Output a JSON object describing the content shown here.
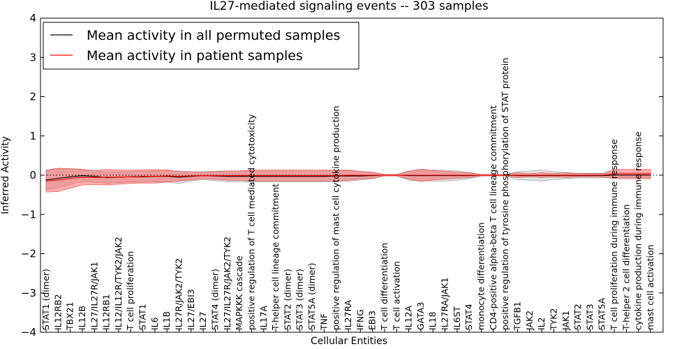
{
  "chart_data": {
    "type": "line",
    "title": "IL27-mediated signaling events -- 303 samples",
    "xlabel": "Cellular Entities",
    "ylabel": "Inferred Activity",
    "ylim": [
      -4,
      4
    ],
    "yticks": [
      -4,
      -3,
      -2,
      -1,
      0,
      1,
      2,
      3,
      4
    ],
    "grid": false,
    "legend_position": "top-left",
    "categories": [
      "STAT1 (dimer)",
      "IL12RB2",
      "TBX21",
      "IL12B",
      "IL27/IL27R/JAK1",
      "IL12RB1",
      "IL12/IL12R/TYK2/JAK2",
      "T cell proliferation",
      "STAT1",
      "IL6",
      "IL1B",
      "IL27R/JAK2/TYK2",
      "IL27/EBI3",
      "IL27",
      "STAT4 (dimer)",
      "IL27/IL27R/JAK2/TYK2",
      "MAPKKK cascade",
      "positive regulation of T cell mediated cytotoxicity",
      "IL17A",
      "T-helper cell lineage commitment",
      "STAT2 (dimer)",
      "STAT3 (dimer)",
      "STAT5A (dimer)",
      "TNF",
      "positive regulation of mast cell cytokine production",
      "IL27RA",
      "IFNG",
      "EBI3",
      "T cell differentiation",
      "T cell activation",
      "IL12A",
      "GATA3",
      "IL18",
      "IL27RA/JAK1",
      "IL6ST",
      "STAT4",
      "monocyte differentiation",
      "CD4-positive alpha-beta T cell lineage commitment",
      "positive regulation of tyrosine phosphorylation of STAT protein",
      "TGFB1",
      "JAK2",
      "IL2",
      "TYK2",
      "JAK1",
      "STAT2",
      "STAT3",
      "STAT5A",
      "T cell proliferation during immune response",
      "T-helper 2 cell differentiation",
      "cytokine production during immune response",
      "mast cell activation"
    ],
    "series": [
      {
        "name": "Mean activity in all permuted samples",
        "color": "#000000",
        "values": [
          -0.12,
          -0.08,
          -0.04,
          -0.01,
          -0.03,
          -0.06,
          -0.05,
          -0.04,
          -0.04,
          -0.03,
          -0.03,
          -0.05,
          -0.03,
          -0.01,
          -0.02,
          -0.03,
          -0.03,
          -0.03,
          -0.03,
          -0.03,
          -0.03,
          -0.03,
          -0.03,
          -0.03,
          -0.02,
          -0.02,
          -0.02,
          -0.01,
          0.0,
          0.0,
          -0.01,
          -0.01,
          -0.01,
          -0.01,
          -0.01,
          -0.01,
          0.0,
          0.0,
          0.0,
          -0.01,
          -0.01,
          -0.01,
          -0.01,
          -0.01,
          -0.01,
          -0.01,
          -0.01,
          0.0,
          0.0,
          0.0,
          0.0
        ],
        "band": [
          0.25,
          0.24,
          0.2,
          0.15,
          0.15,
          0.14,
          0.14,
          0.13,
          0.14,
          0.14,
          0.14,
          0.16,
          0.12,
          0.1,
          0.12,
          0.14,
          0.14,
          0.14,
          0.14,
          0.14,
          0.14,
          0.14,
          0.14,
          0.14,
          0.14,
          0.14,
          0.1,
          0.08,
          0.02,
          0.02,
          0.12,
          0.14,
          0.14,
          0.14,
          0.12,
          0.08,
          0.02,
          0.02,
          0.02,
          0.1,
          0.12,
          0.14,
          0.1,
          0.08,
          0.06,
          0.06,
          0.06,
          0.06,
          0.06,
          0.06,
          0.06
        ]
      },
      {
        "name": "Mean activity in patient samples",
        "color": "#ff0000",
        "values": [
          -0.15,
          -0.12,
          -0.08,
          -0.05,
          -0.06,
          -0.05,
          -0.05,
          -0.04,
          -0.03,
          -0.03,
          -0.02,
          -0.03,
          -0.02,
          -0.01,
          -0.01,
          -0.01,
          -0.01,
          -0.01,
          -0.01,
          -0.01,
          -0.01,
          -0.01,
          -0.01,
          -0.01,
          -0.01,
          0.0,
          0.0,
          0.0,
          0.0,
          0.0,
          0.0,
          0.0,
          0.0,
          0.0,
          0.0,
          0.0,
          0.0,
          0.0,
          0.0,
          0.0,
          0.0,
          0.0,
          0.0,
          0.0,
          0.0,
          0.0,
          0.0,
          0.03,
          0.03,
          0.03,
          0.03
        ],
        "band": [
          0.28,
          0.3,
          0.25,
          0.2,
          0.18,
          0.2,
          0.18,
          0.17,
          0.17,
          0.17,
          0.16,
          0.12,
          0.1,
          0.08,
          0.1,
          0.12,
          0.12,
          0.14,
          0.14,
          0.14,
          0.14,
          0.14,
          0.14,
          0.14,
          0.14,
          0.13,
          0.1,
          0.08,
          0.02,
          0.02,
          0.1,
          0.16,
          0.12,
          0.1,
          0.08,
          0.06,
          0.02,
          0.02,
          0.02,
          0.06,
          0.04,
          0.06,
          0.04,
          0.06,
          0.04,
          0.04,
          0.04,
          0.12,
          0.12,
          0.12,
          0.12
        ]
      }
    ],
    "reference_line": {
      "style": "dotted",
      "y": 0
    }
  }
}
